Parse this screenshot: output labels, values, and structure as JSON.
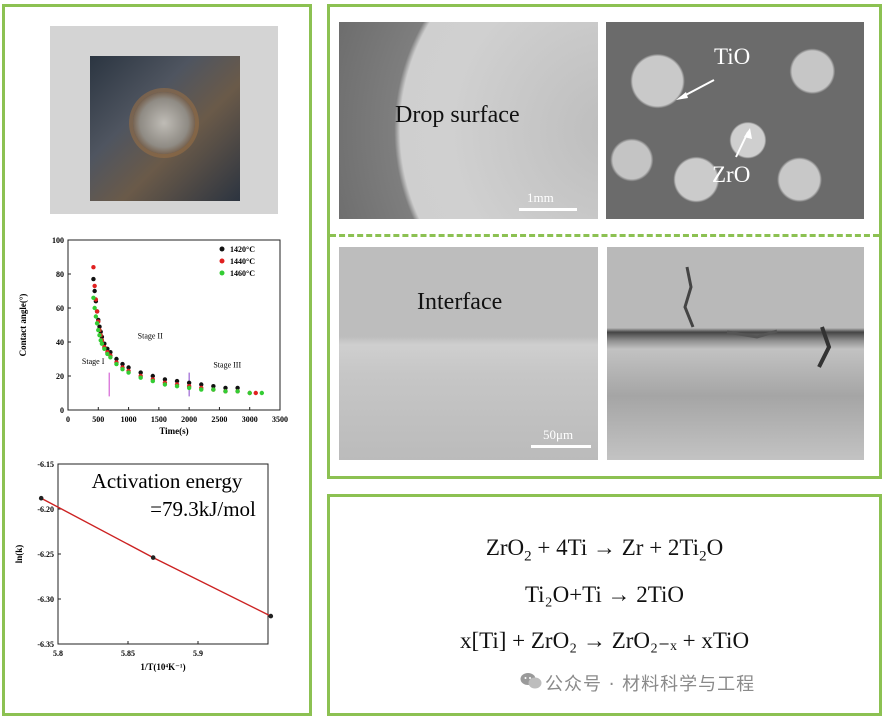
{
  "images": {
    "drop_surface_label": "Drop surface",
    "drop_scale": "1mm",
    "tio_label": "TiO",
    "zro_label": "ZrO",
    "interface_label": "Interface",
    "interface_scale": "50μm"
  },
  "equations": {
    "eq1": [
      "ZrO",
      "2",
      " + 4Ti → Zr + 2Ti",
      "2",
      "O"
    ],
    "eq2": "Ti₂O+Ti → 2TiO",
    "eq3": "x[Ti] + ZrO₂ → ZrO₂₋ₓ + xTiO"
  },
  "watermark": "公众号 · 材料科学与工程",
  "chart_data": [
    {
      "type": "scatter",
      "title": "",
      "xlabel": "Time(s)",
      "ylabel": "Contact angle(°)",
      "xlim": [
        0,
        3500
      ],
      "ylim": [
        0,
        100
      ],
      "xticks": [
        0,
        500,
        1000,
        1500,
        2000,
        2500,
        3000,
        3500
      ],
      "yticks": [
        0,
        20,
        40,
        60,
        80,
        100
      ],
      "legend_position": "top-right",
      "annotations": [
        {
          "text": "Stage I",
          "x": 230,
          "y": 27
        },
        {
          "text": "Stage II",
          "x": 1150,
          "y": 42
        },
        {
          "text": "Stage III",
          "x": 2400,
          "y": 25
        }
      ],
      "stage_boundaries": [
        {
          "x": 680,
          "color": "#cc44cc"
        },
        {
          "x": 2000,
          "color": "#8844cc"
        }
      ],
      "series": [
        {
          "name": "1420°C",
          "color": "#111111",
          "x": [
            420,
            440,
            460,
            480,
            500,
            520,
            540,
            560,
            600,
            650,
            700,
            800,
            900,
            1000,
            1200,
            1400,
            1600,
            1800,
            2000,
            2200,
            2400,
            2600,
            2800
          ],
          "y": [
            77,
            70,
            64,
            58,
            53,
            49,
            46,
            43,
            39,
            36,
            34,
            30,
            27,
            25,
            22,
            20,
            18,
            17,
            16,
            15,
            14,
            13,
            13
          ]
        },
        {
          "name": "1440°C",
          "color": "#e02020",
          "x": [
            420,
            440,
            460,
            480,
            500,
            520,
            540,
            560,
            600,
            650,
            700,
            800,
            900,
            1000,
            1200,
            1400,
            1600,
            1800,
            2000,
            2200,
            2400,
            2600,
            2800,
            3000,
            3100
          ],
          "y": [
            84,
            73,
            65,
            58,
            52,
            47,
            44,
            41,
            37,
            34,
            32,
            28,
            25,
            23,
            20,
            18,
            16,
            15,
            14,
            13,
            12,
            11,
            11,
            10,
            10
          ]
        },
        {
          "name": "1460°C",
          "color": "#33cc33",
          "x": [
            420,
            440,
            460,
            480,
            500,
            520,
            540,
            560,
            600,
            650,
            700,
            800,
            900,
            1000,
            1200,
            1400,
            1600,
            1800,
            2000,
            2200,
            2400,
            2600,
            2800,
            3000,
            3200
          ],
          "y": [
            66,
            60,
            55,
            51,
            47,
            44,
            41,
            39,
            36,
            33,
            31,
            27,
            24,
            22,
            19,
            17,
            15,
            14,
            13,
            12,
            12,
            11,
            11,
            10,
            10
          ]
        }
      ]
    },
    {
      "type": "line",
      "title": "Activation energy",
      "subtitle": "=79.3kJ/mol",
      "xlabel": "1/T(10⁴K⁻¹)",
      "ylabel": "ln(k)",
      "xlim": [
        5.8,
        5.95
      ],
      "ylim": [
        -6.35,
        -6.15
      ],
      "xticks": [
        5.8,
        5.85,
        5.9
      ],
      "yticks": [
        -6.15,
        -6.2,
        -6.25,
        -6.3,
        -6.35
      ],
      "xtick_labels": [
        "5.8",
        "5.85",
        "5.9"
      ],
      "series": [
        {
          "name": "",
          "color": "#cc2222",
          "x": [
            5.788,
            5.868,
            5.952
          ],
          "y": [
            -6.188,
            -6.254,
            -6.319
          ]
        }
      ]
    }
  ]
}
